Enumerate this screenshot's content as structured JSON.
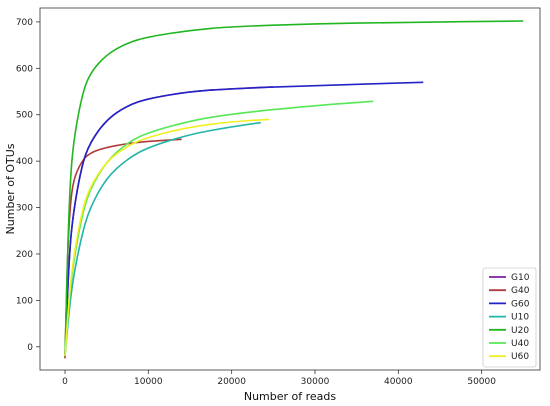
{
  "chart_data": {
    "type": "line",
    "xlabel": "Number of reads",
    "ylabel": "Number of OTUs",
    "xlim": [
      -3000,
      57000
    ],
    "ylim": [
      -50,
      730
    ],
    "xticks": [
      0,
      10000,
      20000,
      30000,
      40000,
      50000
    ],
    "yticks": [
      0,
      100,
      200,
      300,
      400,
      500,
      600,
      700
    ],
    "grid": false,
    "legend_position": "bottom-right",
    "series": [
      {
        "name": "G10",
        "color": "#7b1fa2",
        "x": [
          0,
          500,
          1000,
          2000,
          3000,
          5000,
          7500,
          10000,
          15000,
          20000,
          25000
        ],
        "y": [
          -20,
          200,
          290,
          390,
          440,
          490,
          520,
          535,
          550,
          556,
          560
        ]
      },
      {
        "name": "G40",
        "color": "#b03a3a",
        "x": [
          0,
          300,
          600,
          1000,
          2000,
          3000,
          5000,
          7500,
          10000,
          14000
        ],
        "y": [
          -25,
          200,
          300,
          360,
          400,
          418,
          430,
          438,
          443,
          447
        ]
      },
      {
        "name": "G60",
        "color": "#2323c8",
        "x": [
          0,
          500,
          1000,
          2000,
          3000,
          5000,
          7500,
          10000,
          15000,
          20000,
          30000,
          43000
        ],
        "y": [
          -20,
          200,
          290,
          390,
          440,
          490,
          520,
          535,
          550,
          556,
          563,
          570
        ]
      },
      {
        "name": "U10",
        "color": "#22b5a8",
        "x": [
          0,
          500,
          1000,
          2000,
          3000,
          5000,
          7500,
          10000,
          15000,
          20000,
          23500
        ],
        "y": [
          -20,
          80,
          150,
          240,
          300,
          365,
          405,
          430,
          458,
          474,
          483
        ]
      },
      {
        "name": "U20",
        "color": "#21b521",
        "x": [
          0,
          300,
          600,
          1000,
          2000,
          3000,
          5000,
          7500,
          10000,
          15000,
          20000,
          30000,
          40000,
          55000
        ],
        "y": [
          -20,
          200,
          350,
          440,
          540,
          590,
          630,
          655,
          668,
          682,
          690,
          696,
          699,
          702
        ]
      },
      {
        "name": "U40",
        "color": "#55e855",
        "x": [
          0,
          500,
          1000,
          2000,
          3000,
          5000,
          7500,
          10000,
          15000,
          20000,
          30000,
          37000
        ],
        "y": [
          -20,
          100,
          180,
          280,
          340,
          400,
          440,
          462,
          487,
          502,
          520,
          529
        ]
      },
      {
        "name": "U60",
        "color": "#f0f020",
        "x": [
          0,
          500,
          1000,
          2000,
          3000,
          5000,
          7500,
          10000,
          15000,
          20000,
          24500
        ],
        "y": [
          -20,
          110,
          190,
          290,
          345,
          400,
          433,
          452,
          474,
          485,
          490
        ]
      }
    ]
  }
}
